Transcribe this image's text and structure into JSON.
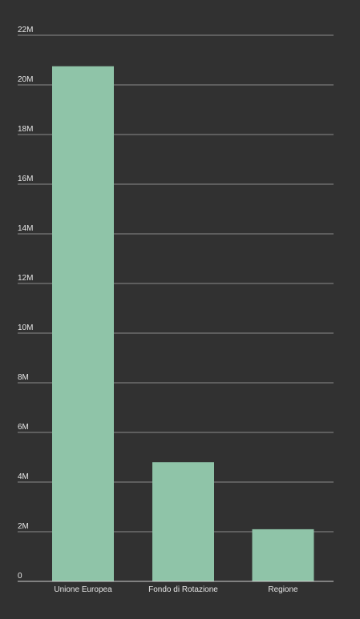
{
  "colors": {
    "background": "#313131",
    "bar": "#8fc4a8",
    "grid": "#8a8a8a",
    "axis": "#d0d0d0",
    "text": "#e6e6e6"
  },
  "chart_data": {
    "type": "bar",
    "categories": [
      "Unione Europea",
      "Fondo di Rotazione",
      "Regione"
    ],
    "values": [
      20750000,
      4800000,
      2100000
    ],
    "title": "",
    "xlabel": "",
    "ylabel": "",
    "ylim": [
      0,
      22000000
    ],
    "yticks": [
      0,
      2000000,
      4000000,
      6000000,
      8000000,
      10000000,
      12000000,
      14000000,
      16000000,
      18000000,
      20000000,
      22000000
    ],
    "ytick_labels": [
      "0",
      "2M",
      "4M",
      "6M",
      "8M",
      "10M",
      "12M",
      "14M",
      "16M",
      "18M",
      "20M",
      "22M"
    ],
    "grid": true,
    "legend": "none"
  }
}
